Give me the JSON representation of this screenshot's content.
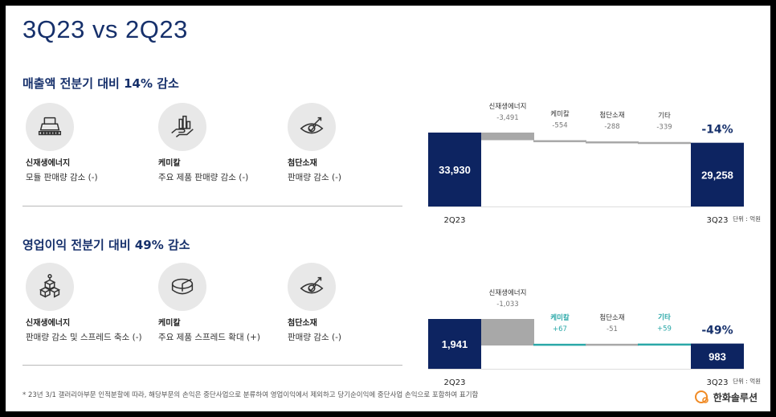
{
  "title": "3Q23 vs 2Q23",
  "sales": {
    "heading": "매출액 전분기 대비 14% 감소",
    "items": [
      {
        "name": "신재생에너지",
        "desc": "모듈 판매량 감소 (-)",
        "icon": "solar-module-icon"
      },
      {
        "name": "케미칼",
        "desc": "주요 제품 판매량 감소 (-)",
        "icon": "hand-chart-icon"
      },
      {
        "name": "첨단소재",
        "desc": "판매량 감소 (-)",
        "icon": "target-arrow-icon"
      }
    ]
  },
  "profit": {
    "heading": "영업이익 전분기 대비 49% 감소",
    "items": [
      {
        "name": "신재생에너지",
        "desc": "판매량 감소 및 스프레드 축소 (-)",
        "icon": "boxes-icon"
      },
      {
        "name": "케미칼",
        "desc": "주요 제품 스프레드 확대 (+)",
        "icon": "pie-chart-icon"
      },
      {
        "name": "첨단소재",
        "desc": "판매량 감소 (-)",
        "icon": "target-arrow-icon"
      }
    ]
  },
  "chart_data": [
    {
      "type": "waterfall",
      "start": {
        "label": "2Q23",
        "value": 33930,
        "value_label": "33,930"
      },
      "steps": [
        {
          "name": "신재생에너지",
          "value": -3491,
          "value_label": "-3,491"
        },
        {
          "name": "케미칼",
          "value": -554,
          "value_label": "-554"
        },
        {
          "name": "첨단소재",
          "value": -288,
          "value_label": "-288"
        },
        {
          "name": "기타",
          "value": -339,
          "value_label": "-339"
        }
      ],
      "end": {
        "label": "3Q23",
        "value": 29258,
        "value_label": "29,258"
      },
      "change": "-14%",
      "unit": "단위 : 억원"
    },
    {
      "type": "waterfall",
      "start": {
        "label": "2Q23",
        "value": 1941,
        "value_label": "1,941"
      },
      "steps": [
        {
          "name": "신재생에너지",
          "value": -1033,
          "value_label": "-1,033"
        },
        {
          "name": "케미칼",
          "value": 67,
          "value_label": "+67"
        },
        {
          "name": "첨단소재",
          "value": -51,
          "value_label": "-51"
        },
        {
          "name": "기타",
          "value": 59,
          "value_label": "+59"
        }
      ],
      "end": {
        "label": "3Q23",
        "value": 983,
        "value_label": "983"
      },
      "change": "-49%",
      "unit": "단위 : 억원"
    }
  ],
  "colors": {
    "navy": "#0d2461",
    "gray": "#a8a8a8",
    "teal": "#2aa8a8"
  },
  "footnote": "* 23년 3/1 갤러리아부문 인적분할에 따라, 해당부문의 손익은 중단사업으로 분류하여 영업이익에서 제외하고 당기순이익에 중단사업 손익으로 포함하여 표기함",
  "logo": {
    "text": "한화솔루션",
    "icon": "hanwha-logo-icon"
  }
}
